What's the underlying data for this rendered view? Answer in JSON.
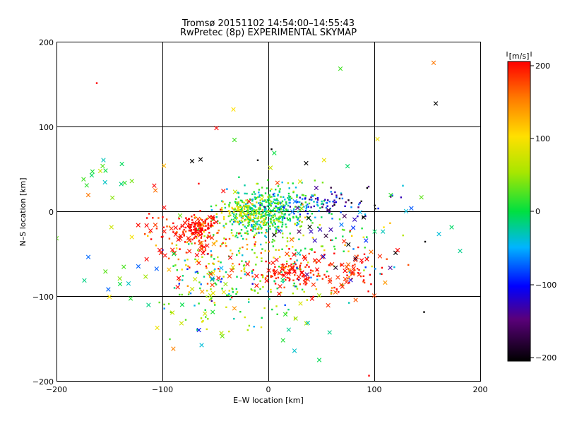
{
  "title": "Tromsø 20151102 14:54:00–14:55:43",
  "subtitle": "RwPretec (8p) EXPERIMENTAL SKYMAP",
  "colorbar": {
    "unit": "[m/s]",
    "range": [
      -200,
      200
    ],
    "ticks": [
      "200",
      "100",
      "0",
      "−100",
      "−200"
    ]
  },
  "chart_data": {
    "type": "scatter",
    "title": "Tromsø 20151102 14:54:00–14:55:43",
    "subtitle": "RwPretec (8p) EXPERIMENTAL SKYMAP",
    "xlabel": "E–W location [km]",
    "ylabel": "N–S location [km]",
    "xlim": [
      -200,
      200
    ],
    "ylim": [
      -200,
      200
    ],
    "xticks": [
      "−200",
      "−100",
      "0",
      "100",
      "200"
    ],
    "yticks": [
      "200",
      "100",
      "0",
      "−100",
      "−200"
    ],
    "grid": true,
    "color_variable": "velocity [m/s]",
    "color_range": [
      -200,
      200
    ],
    "clusters": [
      {
        "marker": "dot",
        "center": [
          -5,
          -2
        ],
        "spread": [
          18,
          14
        ],
        "count": 420,
        "velocity": 0,
        "velocity_spread": 35
      },
      {
        "marker": "dot",
        "center": [
          -25,
          0
        ],
        "spread": [
          10,
          6
        ],
        "count": 80,
        "velocity": 80,
        "velocity_spread": 25
      },
      {
        "marker": "dot",
        "center": [
          -66,
          -17
        ],
        "spread": [
          8,
          7
        ],
        "count": 110,
        "velocity": 200,
        "velocity_spread": 10
      },
      {
        "marker": "dot",
        "center": [
          40,
          12
        ],
        "spread": [
          18,
          10
        ],
        "count": 70,
        "velocity": -80,
        "velocity_spread": 40
      },
      {
        "marker": "dot",
        "center": [
          10,
          10
        ],
        "spread": [
          15,
          10
        ],
        "count": 60,
        "velocity": -20,
        "velocity_spread": 40
      },
      {
        "marker": "dot",
        "center": [
          5,
          -60
        ],
        "spread": [
          35,
          30
        ],
        "count": 130,
        "velocity": 20,
        "velocity_spread": 60
      },
      {
        "marker": "dot",
        "center": [
          20,
          -72
        ],
        "spread": [
          14,
          7
        ],
        "count": 70,
        "velocity": 190,
        "velocity_spread": 20
      },
      {
        "marker": "dot",
        "center": [
          -60,
          -70
        ],
        "spread": [
          25,
          25
        ],
        "count": 90,
        "velocity": 40,
        "velocity_spread": 70
      },
      {
        "marker": "dot",
        "center": [
          -90,
          -30
        ],
        "spread": [
          18,
          12
        ],
        "count": 40,
        "velocity": 180,
        "velocity_spread": 30
      },
      {
        "marker": "dot",
        "center": [
          75,
          -70
        ],
        "spread": [
          22,
          14
        ],
        "count": 60,
        "velocity": 180,
        "velocity_spread": 30
      },
      {
        "marker": "dot",
        "center": [
          -40,
          -30
        ],
        "spread": [
          30,
          25
        ],
        "count": 60,
        "velocity": 160,
        "velocity_spread": 50
      },
      {
        "marker": "dot",
        "center": [
          -20,
          -115
        ],
        "spread": [
          40,
          20
        ],
        "count": 40,
        "velocity": 20,
        "velocity_spread": 40
      },
      {
        "marker": "dot",
        "center": [
          55,
          -30
        ],
        "spread": [
          25,
          25
        ],
        "count": 45,
        "velocity": 10,
        "velocity_spread": 60
      },
      {
        "marker": "dot",
        "center": [
          70,
          10
        ],
        "spread": [
          25,
          10
        ],
        "count": 35,
        "velocity": -140,
        "velocity_spread": 40
      },
      {
        "marker": "cross",
        "center": [
          -150,
          40
        ],
        "spread": [
          12,
          12
        ],
        "count": 14,
        "velocity": 20,
        "velocity_spread": 30
      },
      {
        "marker": "cross",
        "center": [
          -140,
          -70
        ],
        "spread": [
          25,
          20
        ],
        "count": 14,
        "velocity": 10,
        "velocity_spread": 50
      },
      {
        "marker": "cross",
        "center": [
          -80,
          -25
        ],
        "spread": [
          25,
          20
        ],
        "count": 40,
        "velocity": 195,
        "velocity_spread": 10
      },
      {
        "marker": "cross",
        "center": [
          -75,
          -100
        ],
        "spread": [
          18,
          25
        ],
        "count": 22,
        "velocity": 30,
        "velocity_spread": 70
      },
      {
        "marker": "cross",
        "center": [
          -40,
          -60
        ],
        "spread": [
          25,
          25
        ],
        "count": 24,
        "velocity": 160,
        "velocity_spread": 60
      },
      {
        "marker": "cross",
        "center": [
          20,
          -70
        ],
        "spread": [
          15,
          10
        ],
        "count": 30,
        "velocity": 195,
        "velocity_spread": 10
      },
      {
        "marker": "cross",
        "center": [
          70,
          -80
        ],
        "spread": [
          20,
          20
        ],
        "count": 34,
        "velocity": 185,
        "velocity_spread": 25
      },
      {
        "marker": "cross",
        "center": [
          60,
          -20
        ],
        "spread": [
          30,
          30
        ],
        "count": 24,
        "velocity": -150,
        "velocity_spread": 60
      },
      {
        "marker": "cross",
        "center": [
          90,
          0
        ],
        "spread": [
          40,
          30
        ],
        "count": 14,
        "velocity": -30,
        "velocity_spread": 70
      },
      {
        "marker": "cross",
        "center": [
          15,
          -130
        ],
        "spread": [
          25,
          20
        ],
        "count": 12,
        "velocity": 10,
        "velocity_spread": 30
      },
      {
        "marker": "cross",
        "center": [
          -30,
          20
        ],
        "spread": [
          40,
          25
        ],
        "count": 16,
        "velocity": 60,
        "velocity_spread": 80
      }
    ],
    "points": [
      {
        "x": -162,
        "y": 152,
        "velocity": 200,
        "marker": "dot"
      },
      {
        "x": 156,
        "y": 176,
        "velocity": 150,
        "marker": "cross"
      },
      {
        "x": 158,
        "y": 128,
        "velocity": -200,
        "marker": "cross"
      },
      {
        "x": 68,
        "y": 169,
        "velocity": 20,
        "marker": "cross"
      },
      {
        "x": -33,
        "y": 121,
        "velocity": 100,
        "marker": "cross"
      },
      {
        "x": -49,
        "y": 99,
        "velocity": 200,
        "marker": "cross"
      },
      {
        "x": -32,
        "y": 85,
        "velocity": 20,
        "marker": "cross"
      },
      {
        "x": 103,
        "y": 86,
        "velocity": 90,
        "marker": "cross"
      },
      {
        "x": 3,
        "y": 74,
        "velocity": -200,
        "marker": "dot"
      },
      {
        "x": -72,
        "y": 60,
        "velocity": -200,
        "marker": "cross"
      },
      {
        "x": -64,
        "y": 62,
        "velocity": -200,
        "marker": "cross"
      },
      {
        "x": -10,
        "y": 61,
        "velocity": -200,
        "marker": "dot"
      },
      {
        "x": -200,
        "y": -31,
        "velocity": 30,
        "marker": "cross"
      },
      {
        "x": -170,
        "y": 20,
        "velocity": 150,
        "marker": "cross"
      },
      {
        "x": -150,
        "y": -100,
        "velocity": 100,
        "marker": "cross"
      },
      {
        "x": -130,
        "y": -102,
        "velocity": 10,
        "marker": "cross"
      },
      {
        "x": 148,
        "y": -35,
        "velocity": -200,
        "marker": "dot"
      },
      {
        "x": 147,
        "y": -118,
        "velocity": -200,
        "marker": "dot"
      },
      {
        "x": 181,
        "y": -46,
        "velocity": -20,
        "marker": "cross"
      },
      {
        "x": 173,
        "y": -18,
        "velocity": -10,
        "marker": "cross"
      },
      {
        "x": 161,
        "y": -26,
        "velocity": -40,
        "marker": "cross"
      },
      {
        "x": 130,
        "y": 1,
        "velocity": -40,
        "marker": "cross"
      },
      {
        "x": 127,
        "y": 31,
        "velocity": -40,
        "marker": "dot"
      },
      {
        "x": 95,
        "y": -193,
        "velocity": 200,
        "marker": "dot"
      },
      {
        "x": -93,
        "y": -150,
        "velocity": 20,
        "marker": "dot"
      },
      {
        "x": -63,
        "y": -157,
        "velocity": -40,
        "marker": "cross"
      },
      {
        "x": 101,
        "y": 4,
        "velocity": -200,
        "marker": "dot"
      },
      {
        "x": 109,
        "y": -18,
        "velocity": 100,
        "marker": "dot"
      },
      {
        "x": 122,
        "y": -45,
        "velocity": 200,
        "marker": "cross"
      }
    ]
  }
}
